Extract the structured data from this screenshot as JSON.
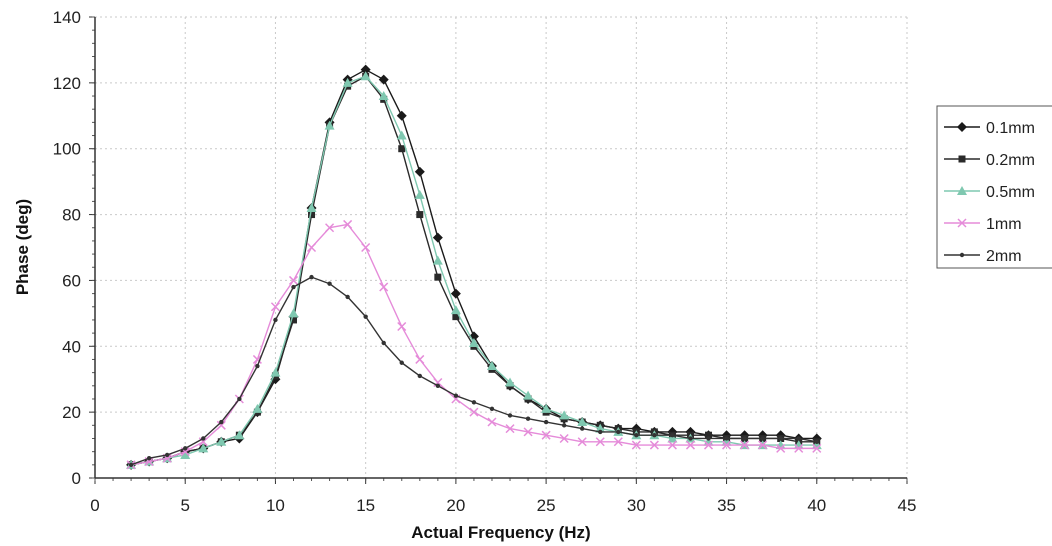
{
  "chart_data": {
    "type": "line",
    "title": "",
    "xlabel": "Actual Frequency (Hz)",
    "ylabel": "Phase (deg)",
    "xlim": [
      0,
      45
    ],
    "ylim": [
      0,
      140
    ],
    "x_ticks": [
      "0",
      "5",
      "10",
      "15",
      "20",
      "25",
      "30",
      "35",
      "40",
      "45"
    ],
    "y_ticks": [
      "0",
      "20",
      "40",
      "60",
      "80",
      "100",
      "120",
      "140"
    ],
    "grid": true,
    "legend_position": "right",
    "x": [
      2,
      3,
      4,
      5,
      6,
      7,
      8,
      9,
      10,
      11,
      12,
      13,
      14,
      15,
      16,
      17,
      18,
      19,
      20,
      21,
      22,
      23,
      24,
      25,
      26,
      27,
      28,
      29,
      30,
      31,
      32,
      33,
      34,
      35,
      36,
      37,
      38,
      39,
      40
    ],
    "series": [
      {
        "name": "0.1mm",
        "color": "#1a1a1a",
        "marker": "diamond",
        "values": [
          4,
          5,
          6,
          8,
          9,
          11,
          12,
          20,
          30,
          49,
          82,
          108,
          121,
          124,
          121,
          110,
          93,
          73,
          56,
          43,
          34,
          28,
          24,
          21,
          18,
          17,
          16,
          15,
          15,
          14,
          14,
          14,
          13,
          13,
          13,
          13,
          13,
          12,
          12
        ]
      },
      {
        "name": "0.2mm",
        "color": "#2a2a2a",
        "marker": "square",
        "values": [
          4,
          5,
          6,
          8,
          9,
          11,
          13,
          20,
          31,
          48,
          80,
          107,
          119,
          122,
          115,
          100,
          80,
          61,
          49,
          40,
          33,
          28,
          24,
          20,
          18,
          17,
          16,
          15,
          14,
          14,
          13,
          13,
          13,
          12,
          12,
          12,
          12,
          11,
          11
        ]
      },
      {
        "name": "0.5mm",
        "color": "#7fc8b0",
        "marker": "triangle",
        "values": [
          4,
          5,
          6,
          7,
          9,
          11,
          13,
          21,
          32,
          50,
          82,
          107,
          120,
          122,
          116,
          104,
          86,
          66,
          51,
          41,
          34,
          29,
          25,
          21,
          19,
          17,
          15,
          14,
          13,
          13,
          12,
          12,
          11,
          11,
          10,
          10,
          10,
          10,
          10
        ]
      },
      {
        "name": "1mm",
        "color": "#e58bd9",
        "marker": "cross",
        "values": [
          4,
          5,
          6,
          8,
          11,
          16,
          24,
          36,
          52,
          60,
          70,
          76,
          77,
          70,
          58,
          46,
          36,
          29,
          24,
          20,
          17,
          15,
          14,
          13,
          12,
          11,
          11,
          11,
          10,
          10,
          10,
          10,
          10,
          10,
          10,
          10,
          9,
          9,
          9
        ]
      },
      {
        "name": "2mm",
        "color": "#333333",
        "marker": "dot",
        "values": [
          4,
          6,
          7,
          9,
          12,
          17,
          24,
          34,
          48,
          58,
          61,
          59,
          55,
          49,
          41,
          35,
          31,
          28,
          25,
          23,
          21,
          19,
          18,
          17,
          16,
          15,
          14,
          14,
          13,
          13,
          13,
          12,
          12,
          12,
          12,
          12,
          12,
          12,
          11
        ]
      }
    ]
  }
}
